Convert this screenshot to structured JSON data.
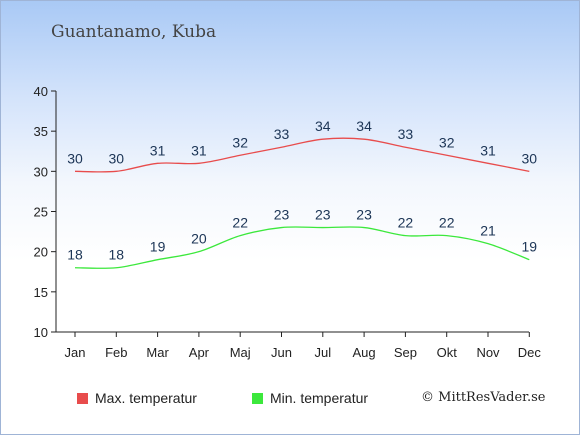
{
  "location": "Guantanamo, Kuba",
  "credit": "© MittResVader.se",
  "chart_data": {
    "type": "line",
    "categories": [
      "Jan",
      "Feb",
      "Mar",
      "Apr",
      "Maj",
      "Jun",
      "Jul",
      "Aug",
      "Sep",
      "Okt",
      "Nov",
      "Dec"
    ],
    "yticks": [
      10,
      15,
      20,
      25,
      30,
      35,
      40
    ],
    "ylim": [
      10,
      40
    ],
    "grid": false,
    "legend_position": "bottom",
    "series": [
      {
        "name": "Max. temperatur",
        "color": "#e84c4c",
        "values": [
          30,
          30,
          31,
          31,
          32,
          33,
          34,
          34,
          33,
          32,
          31,
          30
        ]
      },
      {
        "name": "Min. temperatur",
        "color": "#3ce83c",
        "values": [
          18,
          18,
          19,
          20,
          22,
          23,
          23,
          23,
          22,
          22,
          21,
          19
        ]
      }
    ]
  }
}
